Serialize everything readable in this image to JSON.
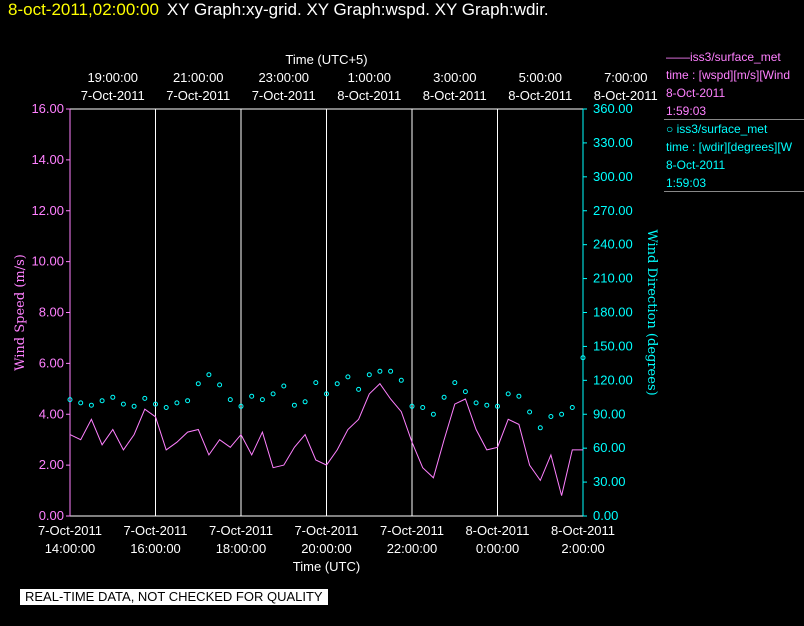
{
  "header": {
    "timestamp": "8-oct-2011,02:00:00",
    "graph_title": "XY Graph:xy-grid.  XY Graph:wspd.  XY Graph:wdir."
  },
  "legend": [
    {
      "marker": "——",
      "source": "iss3/surface_met",
      "field": "time : [wspd][m/s][Wind",
      "date": "8-Oct-2011",
      "time": "1:59:03",
      "color": "#ff80ff"
    },
    {
      "marker": "○",
      "source": "iss3/surface_met",
      "field": "time : [wdir][degrees][W",
      "date": "8-Oct-2011",
      "time": "1:59:03",
      "color": "#00ffff"
    }
  ],
  "disclaimer": "REAL-TIME DATA, NOT CHECKED FOR QUALITY",
  "chart_data": {
    "type": "line",
    "top_axis_title": "Time (UTC+5)",
    "top_ticks": [
      {
        "time": "19:00:00",
        "date": "7-Oct-2011"
      },
      {
        "time": "21:00:00",
        "date": "7-Oct-2011"
      },
      {
        "time": "23:00:00",
        "date": "7-Oct-2011"
      },
      {
        "time": "1:00:00",
        "date": "8-Oct-2011"
      },
      {
        "time": "3:00:00",
        "date": "8-Oct-2011"
      },
      {
        "time": "5:00:00",
        "date": "8-Oct-2011"
      },
      {
        "time": "7:00:00",
        "date": "8-Oct-2011"
      }
    ],
    "xlabel": "Time (UTC)",
    "bottom_ticks": [
      {
        "date": "7-Oct-2011",
        "time": "14:00:00"
      },
      {
        "date": "7-Oct-2011",
        "time": "16:00:00"
      },
      {
        "date": "7-Oct-2011",
        "time": "18:00:00"
      },
      {
        "date": "7-Oct-2011",
        "time": "20:00:00"
      },
      {
        "date": "7-Oct-2011",
        "time": "22:00:00"
      },
      {
        "date": "8-Oct-2011",
        "time": "0:00:00"
      },
      {
        "date": "8-Oct-2011",
        "time": "2:00:00"
      }
    ],
    "xlim_hours_utc": [
      14.0,
      26.0
    ],
    "ylabel_left": "Wind Speed (m/s)",
    "ylim_left": [
      0,
      16
    ],
    "yticks_left": [
      "0.00",
      "2.00",
      "4.00",
      "6.00",
      "8.00",
      "10.00",
      "12.00",
      "14.00",
      "16.00"
    ],
    "ylabel_right": "Wind Direction (degrees)",
    "ylim_right": [
      0,
      360
    ],
    "yticks_right": [
      "0.00",
      "30.00",
      "60.00",
      "90.00",
      "120.00",
      "150.00",
      "180.00",
      "210.00",
      "240.00",
      "270.00",
      "300.00",
      "330.00",
      "360.00"
    ],
    "vertical_grid": true,
    "series": [
      {
        "name": "wspd",
        "kind": "line",
        "color": "#ff80ff",
        "x_hours_utc": [
          14.0,
          14.25,
          14.5,
          14.75,
          15.0,
          15.25,
          15.5,
          15.75,
          16.0,
          16.25,
          16.5,
          16.75,
          17.0,
          17.25,
          17.5,
          17.75,
          18.0,
          18.25,
          18.5,
          18.75,
          19.0,
          19.25,
          19.5,
          19.75,
          20.0,
          20.25,
          20.5,
          20.75,
          21.0,
          21.25,
          21.5,
          21.75,
          22.0,
          22.25,
          22.5,
          22.75,
          23.0,
          23.25,
          23.5,
          23.75,
          24.0,
          24.25,
          24.5,
          24.75,
          25.0,
          25.25,
          25.5,
          25.75,
          26.0
        ],
        "values": [
          3.2,
          3.0,
          3.8,
          2.8,
          3.4,
          2.6,
          3.2,
          4.2,
          3.9,
          2.6,
          2.9,
          3.3,
          3.4,
          2.4,
          3.0,
          2.7,
          3.2,
          2.4,
          3.3,
          1.9,
          2.0,
          2.7,
          3.2,
          2.2,
          2.0,
          2.6,
          3.4,
          3.8,
          4.8,
          5.2,
          4.6,
          4.1,
          2.9,
          1.9,
          1.5,
          3.0,
          4.4,
          4.6,
          3.4,
          2.6,
          2.7,
          3.8,
          3.6,
          2.0,
          1.4,
          2.4,
          0.8,
          2.6,
          2.6
        ]
      },
      {
        "name": "wdir",
        "kind": "scatter",
        "color": "#00ffff",
        "x_hours_utc": [
          14.0,
          14.25,
          14.5,
          14.75,
          15.0,
          15.25,
          15.5,
          15.75,
          16.0,
          16.25,
          16.5,
          16.75,
          17.0,
          17.25,
          17.5,
          17.75,
          18.0,
          18.25,
          18.5,
          18.75,
          19.0,
          19.25,
          19.5,
          19.75,
          20.0,
          20.25,
          20.5,
          20.75,
          21.0,
          21.25,
          21.5,
          21.75,
          22.0,
          22.25,
          22.5,
          22.75,
          23.0,
          23.25,
          23.5,
          23.75,
          24.0,
          24.25,
          24.5,
          24.75,
          25.0,
          25.25,
          25.5,
          25.75,
          26.0
        ],
        "values": [
          103,
          100,
          98,
          102,
          105,
          99,
          97,
          104,
          99,
          96,
          100,
          102,
          117,
          125,
          116,
          103,
          97,
          106,
          103,
          108,
          115,
          98,
          101,
          118,
          108,
          117,
          123,
          112,
          125,
          128,
          128,
          120,
          97,
          96,
          90,
          105,
          118,
          110,
          100,
          98,
          97,
          108,
          106,
          92,
          78,
          88,
          90,
          96,
          140
        ]
      }
    ]
  }
}
